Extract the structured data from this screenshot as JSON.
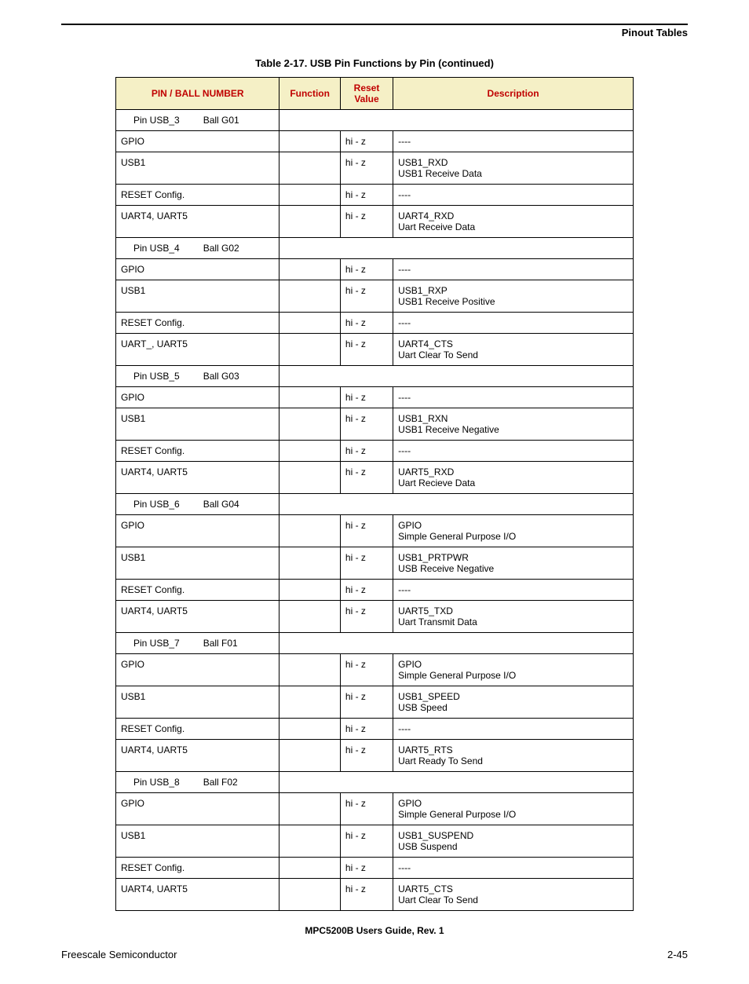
{
  "header_section": "Pinout Tables",
  "table_caption": "Table 2-17. USB Pin Functions by Pin (continued)",
  "columns": {
    "pin": "PIN / BALL NUMBER",
    "func": "Function",
    "reset": "Reset Value",
    "desc": "Description"
  },
  "hiZ": "hi - z",
  "dashes": "----",
  "groups": [
    {
      "pin": "Pin  USB_3",
      "ball": "Ball G01",
      "rows": [
        {
          "f": "GPIO",
          "d1": "----",
          "d2": ""
        },
        {
          "f": "USB1",
          "d1": "USB1_RXD",
          "d2": "USB1 Receive Data"
        },
        {
          "f": "RESET Config.",
          "d1": "----",
          "d2": ""
        },
        {
          "f": "UART4, UART5",
          "d1": "UART4_RXD",
          "d2": "Uart Receive Data"
        }
      ]
    },
    {
      "pin": "Pin  USB_4",
      "ball": "Ball G02",
      "rows": [
        {
          "f": "GPIO",
          "d1": "----",
          "d2": ""
        },
        {
          "f": "USB1",
          "d1": "USB1_RXP",
          "d2": "USB1 Receive Positive"
        },
        {
          "f": "RESET Config.",
          "d1": "----",
          "d2": ""
        },
        {
          "f": "UART_, UART5",
          "d1": "UART4_CTS",
          "d2": "Uart Clear To Send"
        }
      ]
    },
    {
      "pin": "Pin  USB_5",
      "ball": "Ball G03",
      "rows": [
        {
          "f": "GPIO",
          "d1": "----",
          "d2": ""
        },
        {
          "f": "USB1",
          "d1": "USB1_RXN",
          "d2": "USB1 Receive Negative"
        },
        {
          "f": "RESET Config.",
          "d1": "----",
          "d2": ""
        },
        {
          "f": "UART4, UART5",
          "d1": "UART5_RXD",
          "d2": "Uart Recieve Data"
        }
      ]
    },
    {
      "pin": "Pin  USB_6",
      "ball": "Ball G04",
      "rows": [
        {
          "f": "GPIO",
          "d1": "GPIO",
          "d2": "Simple General Purpose I/O"
        },
        {
          "f": "USB1",
          "d1": "USB1_PRTPWR",
          "d2": "USB Receive Negative"
        },
        {
          "f": "RESET Config.",
          "d1": "----",
          "d2": ""
        },
        {
          "f": "UART4, UART5",
          "d1": "UART5_TXD",
          "d2": "Uart Transmit Data"
        }
      ]
    },
    {
      "pin": "Pin  USB_7",
      "ball": "Ball F01",
      "rows": [
        {
          "f": "GPIO",
          "d1": "GPIO",
          "d2": "Simple General Purpose I/O"
        },
        {
          "f": "USB1",
          "d1": "USB1_SPEED",
          "d2": "USB Speed"
        },
        {
          "f": "RESET Config.",
          "d1": "----",
          "d2": ""
        },
        {
          "f": "UART4, UART5",
          "d1": "UART5_RTS",
          "d2": "Uart Ready To Send"
        }
      ]
    },
    {
      "pin": "Pin  USB_8",
      "ball": "Ball F02",
      "rows": [
        {
          "f": "GPIO",
          "d1": "GPIO",
          "d2": "Simple General Purpose I/O"
        },
        {
          "f": "USB1",
          "d1": "USB1_SUSPEND",
          "d2": "USB Suspend"
        },
        {
          "f": "RESET Config.",
          "d1": "----",
          "d2": ""
        },
        {
          "f": "UART4, UART5",
          "d1": "UART5_CTS",
          "d2": "Uart Clear To Send"
        }
      ]
    }
  ],
  "footer_title": "MPC5200B Users Guide, Rev. 1",
  "footer_left": "Freescale Semiconductor",
  "footer_right": "2-45"
}
